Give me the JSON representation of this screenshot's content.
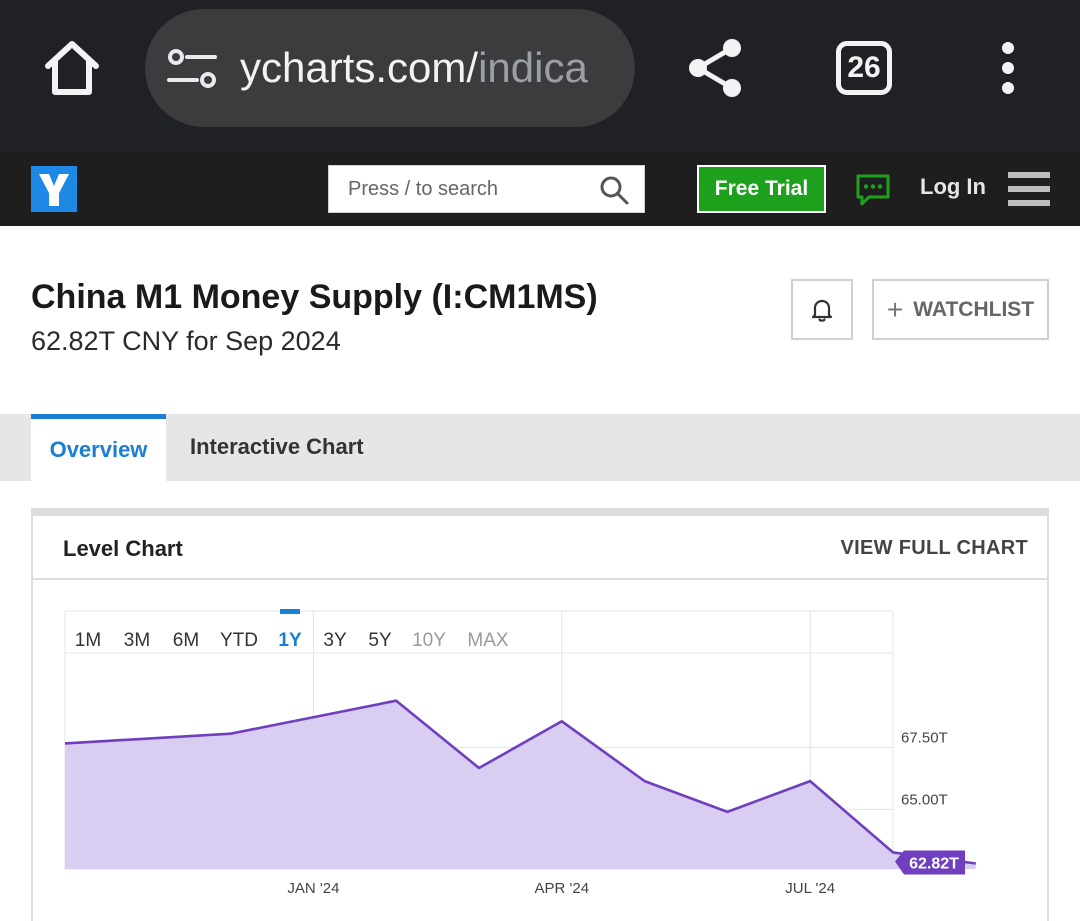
{
  "browser": {
    "url_host": "ycharts.com/",
    "url_path": "indica",
    "tab_count": "26"
  },
  "nav": {
    "logo_letter": "Y",
    "search_placeholder": "Press / to search",
    "free_trial_label": "Free Trial",
    "login_label": "Log In"
  },
  "header": {
    "title": "China M1 Money Supply (I:CM1MS)",
    "subtitle": "62.82T CNY for Sep 2024",
    "watchlist_label": "WATCHLIST"
  },
  "tabs": [
    {
      "label": "Overview",
      "active": true
    },
    {
      "label": "Interactive Chart",
      "active": false
    }
  ],
  "card": {
    "title": "Level Chart",
    "view_full_label": "VIEW FULL CHART"
  },
  "colors": {
    "line": "#6f3fbf",
    "area": "#d9cdf2",
    "active_tab": "#1a7fd1",
    "free_trial": "#1da11d",
    "logo": "#1e88e5"
  },
  "chart_data": {
    "type": "area",
    "ranges": [
      "1M",
      "3M",
      "6M",
      "YTD",
      "1Y",
      "3Y",
      "5Y",
      "10Y",
      "MAX"
    ],
    "active_range": "1Y",
    "disabled_ranges": [
      "10Y",
      "MAX"
    ],
    "x": [
      "Oct 2023",
      "Dec 2023",
      "Feb 2024",
      "Mar 2024",
      "Apr 2024",
      "May 2024",
      "Jun 2024",
      "Jul 2024",
      "Aug 2024",
      "Sep 2024"
    ],
    "values": [
      67.66,
      68.05,
      69.38,
      66.67,
      68.55,
      66.14,
      64.9,
      66.14,
      63.27,
      62.82
    ],
    "x_tick_labels": [
      "JAN '24",
      "APR '24",
      "JUL '24"
    ],
    "y_tick_labels": [
      "67.50T",
      "65.00T"
    ],
    "y_ticks": [
      67.5,
      65.0
    ],
    "ylim": [
      62.6,
      71.3
    ],
    "last_value_label": "62.82T",
    "grid": true
  }
}
